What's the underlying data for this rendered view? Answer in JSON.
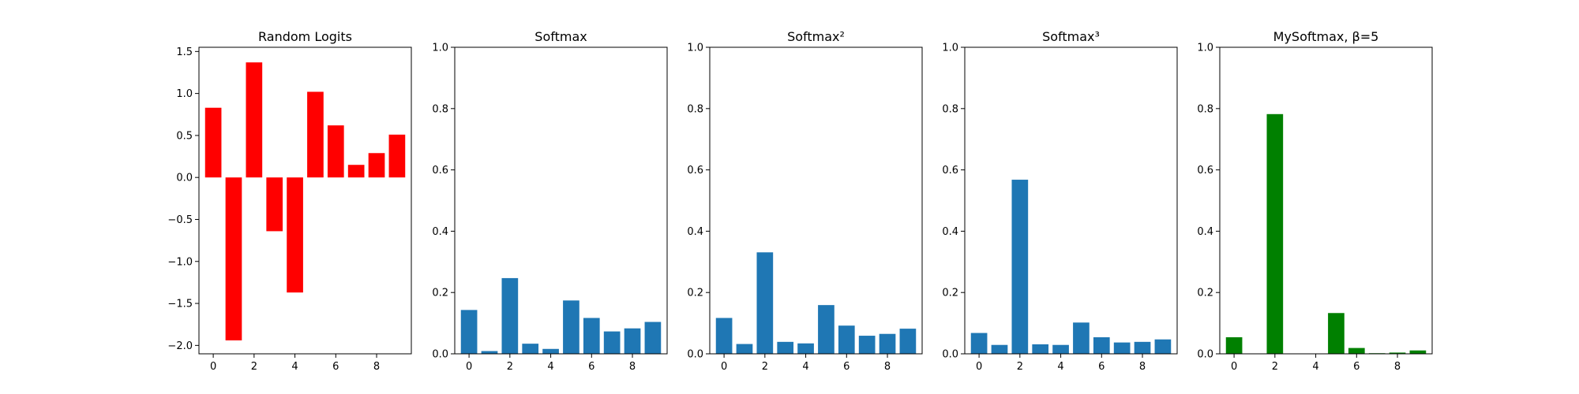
{
  "chart_data": [
    {
      "type": "bar",
      "title": "Random Logits",
      "x": [
        0,
        1,
        2,
        3,
        4,
        5,
        6,
        7,
        8,
        9
      ],
      "values": [
        0.83,
        -1.94,
        1.37,
        -0.64,
        -1.37,
        1.02,
        0.62,
        0.15,
        0.29,
        0.51
      ],
      "ylim": [
        -2.1,
        1.55
      ],
      "yticks": [
        -2.0,
        -1.5,
        -1.0,
        -0.5,
        0.0,
        0.5,
        1.0,
        1.5
      ],
      "ytick_labels": [
        "−2.0",
        "−1.5",
        "−1.0",
        "−0.5",
        "0.0",
        "0.5",
        "1.0",
        "1.5"
      ],
      "xlim": [
        -0.7,
        9.7
      ],
      "xticks": [
        0,
        2,
        4,
        6,
        8
      ],
      "xtick_labels": [
        "0",
        "2",
        "4",
        "6",
        "8"
      ],
      "color": "#ff0000",
      "xlabel": "",
      "ylabel": ""
    },
    {
      "type": "bar",
      "title": "Softmax",
      "x": [
        0,
        1,
        2,
        3,
        4,
        5,
        6,
        7,
        8,
        9
      ],
      "values": [
        0.143,
        0.009,
        0.247,
        0.033,
        0.016,
        0.174,
        0.117,
        0.073,
        0.083,
        0.104
      ],
      "ylim": [
        0,
        1.0
      ],
      "yticks": [
        0.0,
        0.2,
        0.4,
        0.6,
        0.8,
        1.0
      ],
      "ytick_labels": [
        "0.0",
        "0.2",
        "0.4",
        "0.6",
        "0.8",
        "1.0"
      ],
      "xlim": [
        -0.7,
        9.7
      ],
      "xticks": [
        0,
        2,
        4,
        6,
        8
      ],
      "xtick_labels": [
        "0",
        "2",
        "4",
        "6",
        "8"
      ],
      "color": "#1f77b4",
      "xlabel": "",
      "ylabel": ""
    },
    {
      "type": "bar",
      "title": "Softmax²",
      "x": [
        0,
        1,
        2,
        3,
        4,
        5,
        6,
        7,
        8,
        9
      ],
      "values": [
        0.117,
        0.032,
        0.331,
        0.039,
        0.034,
        0.159,
        0.092,
        0.059,
        0.065,
        0.082
      ],
      "ylim": [
        0,
        1.0
      ],
      "yticks": [
        0.0,
        0.2,
        0.4,
        0.6,
        0.8,
        1.0
      ],
      "ytick_labels": [
        "0.0",
        "0.2",
        "0.4",
        "0.6",
        "0.8",
        "1.0"
      ],
      "xlim": [
        -0.7,
        9.7
      ],
      "xticks": [
        0,
        2,
        4,
        6,
        8
      ],
      "xtick_labels": [
        "0",
        "2",
        "4",
        "6",
        "8"
      ],
      "color": "#1f77b4",
      "xlabel": "",
      "ylabel": ""
    },
    {
      "type": "bar",
      "title": "Softmax³",
      "x": [
        0,
        1,
        2,
        3,
        4,
        5,
        6,
        7,
        8,
        9
      ],
      "values": [
        0.068,
        0.029,
        0.568,
        0.031,
        0.029,
        0.102,
        0.054,
        0.037,
        0.039,
        0.047
      ],
      "ylim": [
        0,
        1.0
      ],
      "yticks": [
        0.0,
        0.2,
        0.4,
        0.6,
        0.8,
        1.0
      ],
      "ytick_labels": [
        "0.0",
        "0.2",
        "0.4",
        "0.6",
        "0.8",
        "1.0"
      ],
      "xlim": [
        -0.7,
        9.7
      ],
      "xticks": [
        0,
        2,
        4,
        6,
        8
      ],
      "xtick_labels": [
        "0",
        "2",
        "4",
        "6",
        "8"
      ],
      "color": "#1f77b4",
      "xlabel": "",
      "ylabel": ""
    },
    {
      "type": "bar",
      "title": "MySoftmax, β=5",
      "x": [
        0,
        1,
        2,
        3,
        4,
        5,
        6,
        7,
        8,
        9
      ],
      "values": [
        0.054,
        0.0,
        0.782,
        0.0,
        0.0,
        0.133,
        0.019,
        0.002,
        0.004,
        0.011
      ],
      "ylim": [
        0,
        1.0
      ],
      "yticks": [
        0.0,
        0.2,
        0.4,
        0.6,
        0.8,
        1.0
      ],
      "ytick_labels": [
        "0.0",
        "0.2",
        "0.4",
        "0.6",
        "0.8",
        "1.0"
      ],
      "xlim": [
        -0.7,
        9.7
      ],
      "xticks": [
        0,
        2,
        4,
        6,
        8
      ],
      "xtick_labels": [
        "0",
        "2",
        "4",
        "6",
        "8"
      ],
      "color": "#008000",
      "xlabel": "",
      "ylabel": ""
    }
  ]
}
